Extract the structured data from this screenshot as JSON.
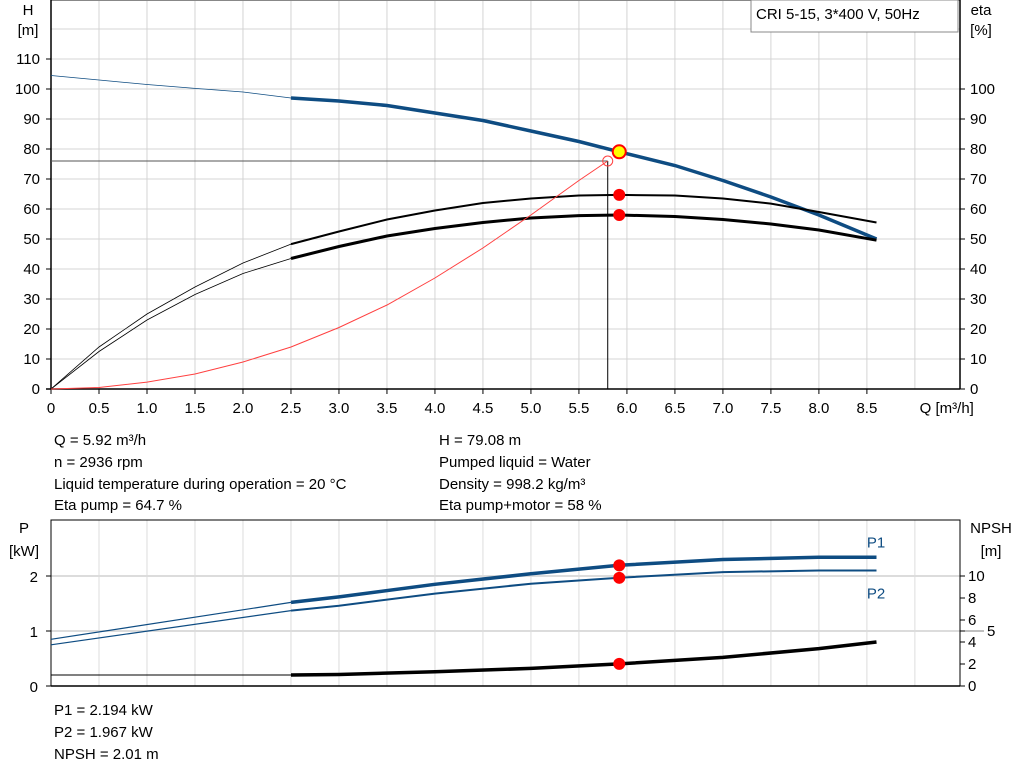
{
  "pump_label": "CRI 5-15, 3*400 V, 50Hz",
  "chart_data": [
    {
      "type": "line",
      "name": "head-efficiency",
      "ylabel_left": "H",
      "yunit_left": "[m]",
      "ylabel_right": "eta",
      "yunit_right": "[%]",
      "xlabel": "Q [m³/h]",
      "xlim": [
        0,
        9.47
      ],
      "ylim": [
        0,
        129.7
      ],
      "grid": true,
      "xticks": [
        0,
        0.5,
        1.0,
        1.5,
        2.0,
        2.5,
        3.0,
        3.5,
        4.0,
        4.5,
        5.0,
        5.5,
        6.0,
        6.5,
        7.0,
        7.5,
        8.0,
        8.5
      ],
      "xtick_labels": [
        "0",
        "0.5",
        "1.0",
        "1.5",
        "2.0",
        "2.5",
        "3.0",
        "3.5",
        "4.0",
        "4.5",
        "5.0",
        "5.5",
        "6.0",
        "6.5",
        "7.0",
        "7.5",
        "8.0",
        "8.5"
      ],
      "yticks_left": [
        0,
        10,
        20,
        30,
        40,
        50,
        60,
        70,
        80,
        90,
        100,
        110
      ],
      "yticks_right": [
        0,
        10,
        20,
        30,
        40,
        50,
        60,
        70,
        80,
        90,
        100
      ],
      "series": [
        {
          "key": "H",
          "color": "#0e4c82",
          "x": [
            0,
            0.5,
            1,
            1.5,
            2,
            2.5,
            3,
            3.5,
            4,
            4.5,
            5,
            5.5,
            5.92,
            6.5,
            7,
            7.5,
            8,
            8.6
          ],
          "y": [
            104.5,
            103,
            101.5,
            100.2,
            99,
            97,
            96,
            94.5,
            92,
            89.5,
            86,
            82.5,
            79.08,
            74.5,
            69.5,
            64,
            58,
            50
          ]
        },
        {
          "key": "eta_pump",
          "color": "#000000",
          "x": [
            0,
            0.5,
            1,
            1.5,
            2,
            2.5,
            3,
            3.5,
            4,
            4.5,
            5,
            5.5,
            5.92,
            6.5,
            7,
            7.5,
            8,
            8.6
          ],
          "y": [
            0,
            14,
            25,
            34,
            42,
            48.3,
            52.5,
            56.5,
            59.5,
            62,
            63.5,
            64.5,
            64.7,
            64.5,
            63.5,
            61.8,
            59,
            55.5
          ]
        },
        {
          "key": "eta_pump_motor",
          "color": "#000000",
          "x": [
            0,
            0.5,
            1,
            1.5,
            2,
            2.5,
            3,
            3.5,
            4,
            4.5,
            5,
            5.5,
            5.92,
            6.5,
            7,
            7.5,
            8,
            8.6
          ],
          "y": [
            0,
            12.5,
            23,
            31.5,
            38.5,
            43.5,
            47.5,
            51,
            53.5,
            55.5,
            57,
            57.8,
            58,
            57.5,
            56.5,
            55,
            53,
            49.6
          ]
        },
        {
          "key": "system",
          "color": "#ff4040",
          "x": [
            0,
            0.5,
            1,
            1.5,
            2,
            2.5,
            3,
            3.5,
            4,
            4.5,
            5,
            5.5,
            5.8
          ],
          "y": [
            0,
            0.5,
            2.3,
            5,
            9,
            14,
            20.5,
            28,
            37,
            47,
            58,
            69.5,
            76
          ]
        }
      ],
      "duty_point": {
        "q": 5.92,
        "h": 79.08,
        "eta_pump": 64.7,
        "eta_pump_motor": 58
      },
      "requested_point": {
        "q": 5.8,
        "h": 76
      }
    },
    {
      "type": "line",
      "name": "power-npsh",
      "ylabel_left": "P",
      "yunit_left": "[kW]",
      "ylabel_right": "NPSH",
      "yunit_right": "[m]",
      "xlim": [
        0,
        9.47
      ],
      "ylim": [
        0,
        3.0
      ],
      "ylim_right": [
        0,
        15
      ],
      "grid": true,
      "yticks_left": [
        0,
        1,
        2
      ],
      "yticks_right": [
        0,
        2,
        4,
        5,
        6,
        8,
        10
      ],
      "series": [
        {
          "key": "P1",
          "name": "P1",
          "color": "#0e4c82",
          "x": [
            0,
            2.5,
            3,
            4,
            5,
            5.92,
            7,
            8,
            8.6
          ],
          "y": [
            0.85,
            1.52,
            1.62,
            1.85,
            2.04,
            2.194,
            2.3,
            2.34,
            2.34
          ]
        },
        {
          "key": "P2",
          "name": "P2",
          "color": "#0e4c82",
          "x": [
            0,
            2.5,
            3,
            4,
            5,
            5.92,
            7,
            8,
            8.6
          ],
          "y": [
            0.75,
            1.37,
            1.46,
            1.68,
            1.86,
            1.967,
            2.07,
            2.1,
            2.1
          ]
        },
        {
          "key": "NPSH",
          "color": "#000000",
          "axis": "right",
          "x": [
            0,
            2.5,
            3,
            4,
            5,
            5.92,
            7,
            8,
            8.6
          ],
          "y": [
            1,
            1,
            1.05,
            1.3,
            1.6,
            2.01,
            2.6,
            3.4,
            4.0
          ]
        }
      ],
      "duty_point": {
        "q": 5.92,
        "p1": 2.194,
        "p2": 1.967,
        "npsh": 2.01
      }
    }
  ],
  "readout": {
    "q": "Q = 5.92 m³/h",
    "n": "n = 2936 rpm",
    "temp": "Liquid temperature during operation = 20 °C",
    "eta_pump": "Eta pump = 64.7 %",
    "h": "H = 79.08 m",
    "liquid": "Pumped liquid = Water",
    "density": "Density = 998.2 kg/m³",
    "eta_pm": "Eta pump+motor = 58 %",
    "p1": "P1 = 2.194 kW",
    "p2": "P2 = 1.967 kW",
    "npsh": "NPSH = 2.01 m"
  }
}
